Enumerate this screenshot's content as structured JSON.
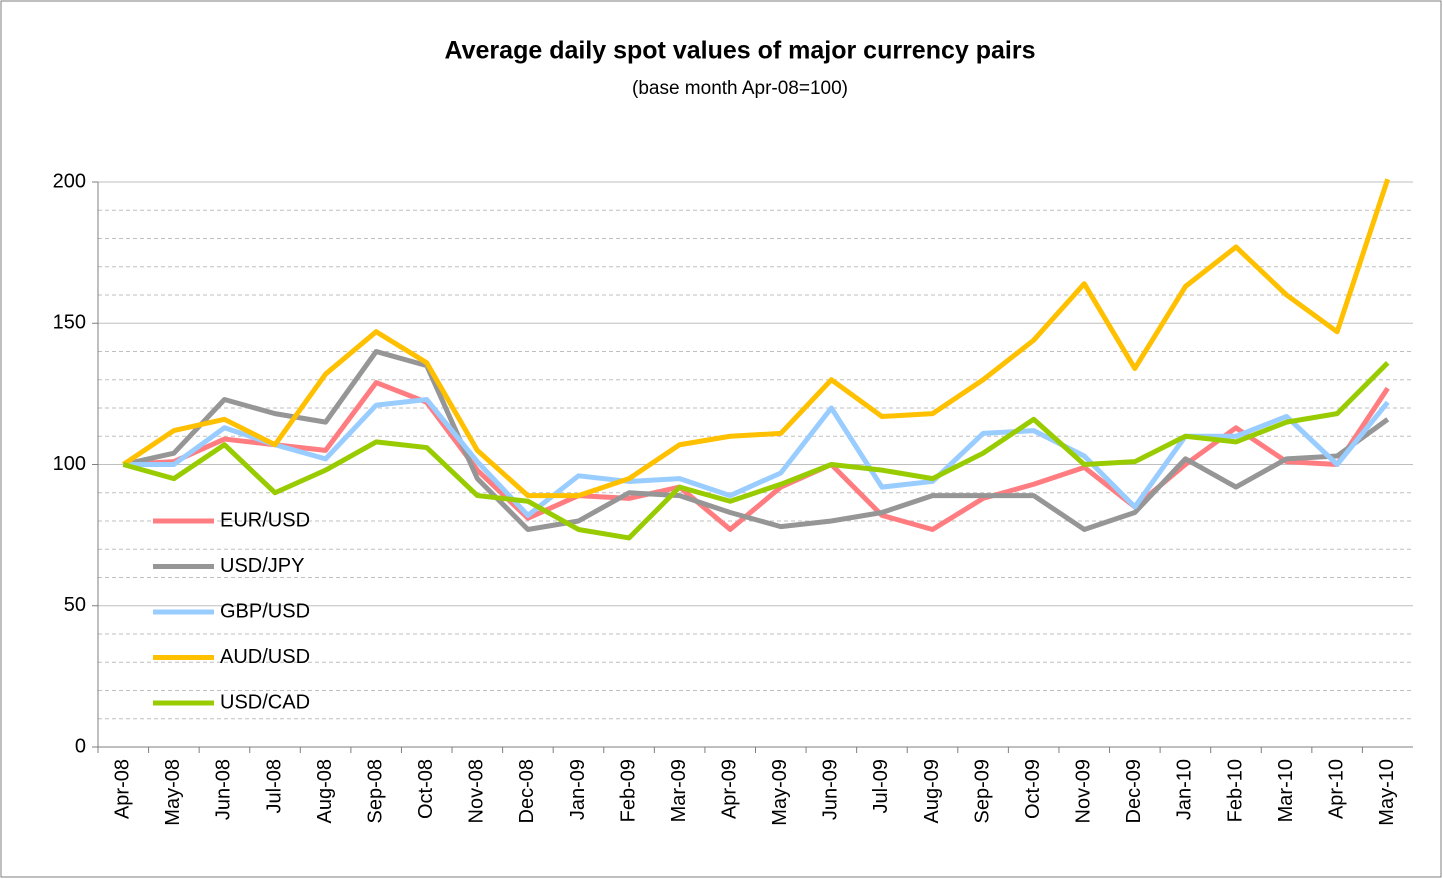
{
  "chart_data": {
    "type": "line",
    "title": "Average daily spot values of major currency pairs",
    "subtitle": "(base month Apr-08=100)",
    "categories": [
      "Apr-08",
      "May-08",
      "Jun-08",
      "Jul-08",
      "Aug-08",
      "Sep-08",
      "Oct-08",
      "Nov-08",
      "Dec-08",
      "Jan-09",
      "Feb-09",
      "Mar-09",
      "Apr-09",
      "May-09",
      "Jun-09",
      "Jul-09",
      "Aug-09",
      "Sep-09",
      "Oct-09",
      "Nov-09",
      "Dec-09",
      "Jan-10",
      "Feb-10",
      "Mar-10",
      "Apr-10",
      "May-10"
    ],
    "series": [
      {
        "name": "EUR/USD",
        "color": "#ff7c80",
        "values": [
          100,
          101,
          109,
          107,
          105,
          129,
          122,
          98,
          81,
          89,
          88,
          92,
          77,
          92,
          100,
          82,
          77,
          88,
          93,
          99,
          85,
          100,
          113,
          101,
          100,
          127
        ]
      },
      {
        "name": "USD/JPY",
        "color": "#969696",
        "values": [
          100,
          104,
          123,
          118,
          115,
          140,
          135,
          95,
          77,
          80,
          90,
          89,
          83,
          78,
          80,
          83,
          89,
          89,
          89,
          77,
          83,
          102,
          92,
          102,
          103,
          116
        ]
      },
      {
        "name": "GBP/USD",
        "color": "#99ccff",
        "values": [
          100,
          100,
          113,
          107,
          102,
          121,
          123,
          101,
          82,
          96,
          94,
          95,
          89,
          97,
          120,
          92,
          94,
          111,
          112,
          103,
          85,
          110,
          110,
          117,
          100,
          122
        ]
      },
      {
        "name": "AUD/USD",
        "color": "#ffc000",
        "values": [
          100,
          112,
          116,
          107,
          132,
          147,
          136,
          105,
          89,
          89,
          95,
          107,
          110,
          111,
          130,
          117,
          118,
          130,
          144,
          164,
          134,
          163,
          177,
          160,
          147,
          201
        ]
      },
      {
        "name": "USD/CAD",
        "color": "#99cc00",
        "values": [
          100,
          95,
          107,
          90,
          98,
          108,
          106,
          89,
          87,
          77,
          74,
          92,
          87,
          93,
          100,
          98,
          95,
          104,
          116,
          100,
          101,
          110,
          108,
          115,
          118,
          136
        ]
      }
    ],
    "ylim": [
      0,
      200
    ],
    "yticks": [
      0,
      50,
      100,
      150,
      200
    ],
    "grid": true,
    "minor_grid": 10,
    "legend": "left"
  }
}
